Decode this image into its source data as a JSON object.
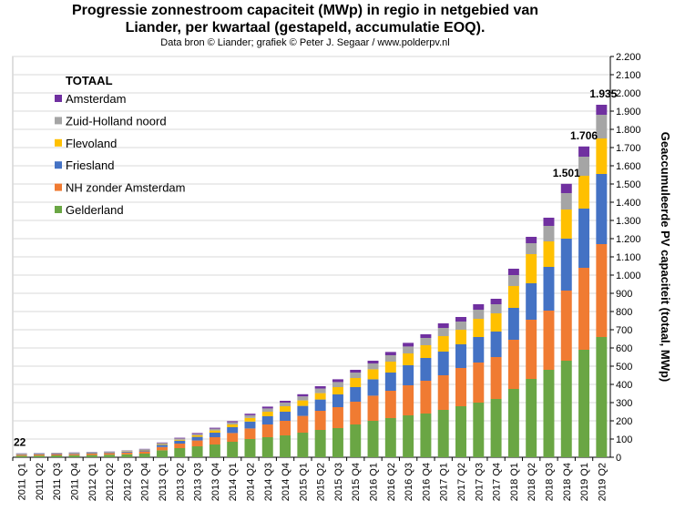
{
  "chart_data": {
    "type": "bar",
    "stacked": true,
    "title_line1": "Progressie zonnestroom capaciteit (MWp) in regio in netgebied van",
    "title_line2": "Liander, per kwartaal (gestapeld, accumulatie  EOQ).",
    "subtitle": "Data bron © Liander; grafiek © Peter J. Segaar / www.polderpv.nl",
    "ylabel": "Geaccumuleerde PV capaciteit (totaal, MWp)",
    "ylim": [
      0,
      2200
    ],
    "ytick_step": 100,
    "grid": true,
    "legend_title": "TOTAAL",
    "legend_position": "top-left",
    "categories": [
      "2011 Q1",
      "2011 Q2",
      "2011 Q3",
      "2011 Q4",
      "2012 Q1",
      "2012 Q2",
      "2012 Q3",
      "2012 Q4",
      "2013 Q1",
      "2013 Q2",
      "2013 Q3",
      "2013 Q4",
      "2014 Q1",
      "2014 Q2",
      "2014 Q3",
      "2014 Q4",
      "2015 Q1",
      "2015 Q2",
      "2015 Q3",
      "2015 Q4",
      "2016 Q1",
      "2016 Q2",
      "2016 Q3",
      "2016 Q4",
      "2017 Q1",
      "2017 Q2",
      "2017 Q3",
      "2017 Q4",
      "2018 Q1",
      "2018 Q2",
      "2018 Q3",
      "2018 Q4",
      "2019 Q1",
      "2019 Q2"
    ],
    "series": [
      {
        "name": "Gelderland",
        "color": "#6aa644",
        "values": [
          8,
          9,
          10,
          11,
          12,
          14,
          16,
          20,
          38,
          50,
          60,
          70,
          85,
          100,
          110,
          120,
          135,
          150,
          160,
          180,
          200,
          215,
          230,
          240,
          260,
          280,
          300,
          320,
          375,
          430,
          480,
          530,
          590,
          660
        ]
      },
      {
        "name": "NH zonder Amsterdam",
        "color": "#f07b32",
        "values": [
          6,
          6,
          7,
          7,
          8,
          9,
          10,
          12,
          18,
          25,
          32,
          40,
          48,
          58,
          70,
          80,
          92,
          105,
          115,
          125,
          138,
          150,
          165,
          180,
          190,
          210,
          220,
          230,
          270,
          325,
          325,
          385,
          450,
          510
        ]
      },
      {
        "name": "Friesland",
        "color": "#4472c4",
        "values": [
          3,
          3,
          3,
          4,
          4,
          4,
          5,
          6,
          12,
          16,
          20,
          25,
          32,
          38,
          45,
          50,
          55,
          62,
          70,
          80,
          90,
          100,
          110,
          125,
          130,
          130,
          140,
          140,
          175,
          200,
          240,
          285,
          325,
          385
        ]
      },
      {
        "name": "Flevoland",
        "color": "#ffc000",
        "values": [
          1,
          1,
          1,
          1,
          1,
          1,
          2,
          2,
          4,
          5,
          8,
          12,
          15,
          20,
          25,
          30,
          30,
          35,
          40,
          50,
          55,
          60,
          65,
          70,
          85,
          80,
          100,
          100,
          120,
          160,
          140,
          160,
          180,
          195
        ]
      },
      {
        "name": "Zuid-Holland noord",
        "color": "#a5a5a5",
        "values": [
          3,
          3,
          3,
          3,
          3,
          3,
          4,
          4,
          6,
          7,
          8,
          10,
          12,
          15,
          18,
          20,
          22,
          25,
          28,
          30,
          32,
          35,
          38,
          40,
          45,
          45,
          50,
          50,
          60,
          60,
          85,
          90,
          105,
          130
        ]
      },
      {
        "name": "Amsterdam",
        "color": "#7030a0",
        "values": [
          1,
          1,
          1,
          1,
          1,
          1,
          1,
          2,
          3,
          4,
          5,
          5,
          6,
          8,
          10,
          10,
          12,
          13,
          15,
          15,
          15,
          18,
          20,
          20,
          25,
          25,
          30,
          30,
          35,
          35,
          45,
          51,
          56,
          55
        ]
      }
    ],
    "annotations": [
      {
        "index": 0,
        "label": "22"
      },
      {
        "index": 31,
        "label": "1.501"
      },
      {
        "index": 32,
        "label": "1.706"
      },
      {
        "index": 33,
        "label": "1.935"
      }
    ]
  }
}
